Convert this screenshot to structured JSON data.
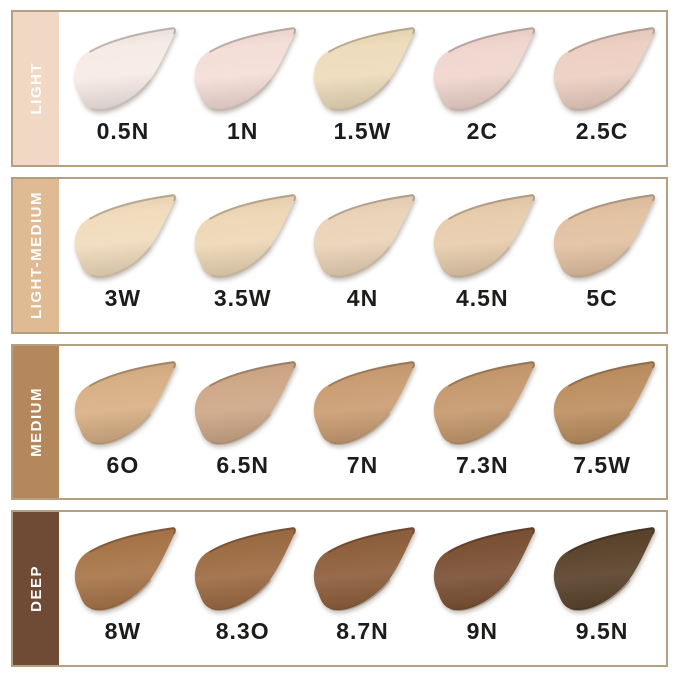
{
  "chart_data": {
    "type": "table",
    "box_border_color": "#b3a080",
    "label_color": "#1c1c1a",
    "category_text_color": "#ffffff",
    "background": "#ffffff",
    "rows": [
      {
        "category": "LIGHT",
        "sidebar_color": "#f1d8c4",
        "shades": [
          {
            "label": "0.5N",
            "color": "#f7ebe5"
          },
          {
            "label": "1N",
            "color": "#f4ded7"
          },
          {
            "label": "1.5W",
            "color": "#eedcbb"
          },
          {
            "label": "2C",
            "color": "#f0d6ce"
          },
          {
            "label": "2.5C",
            "color": "#edd0c2"
          }
        ]
      },
      {
        "category": "LIGHT-MEDIUM",
        "sidebar_color": "#dfba92",
        "shades": [
          {
            "label": "3W",
            "color": "#f1dcbd"
          },
          {
            "label": "3.5W",
            "color": "#eed7b6"
          },
          {
            "label": "4N",
            "color": "#ebd3b8"
          },
          {
            "label": "4.5N",
            "color": "#e8cdad"
          },
          {
            "label": "5C",
            "color": "#e3c2a3"
          }
        ]
      },
      {
        "category": "MEDIUM",
        "sidebar_color": "#b5875c",
        "shades": [
          {
            "label": "6O",
            "color": "#d8b086"
          },
          {
            "label": "6.5N",
            "color": "#cfa888"
          },
          {
            "label": "7N",
            "color": "#ca9e74"
          },
          {
            "label": "7.3N",
            "color": "#c69a6f"
          },
          {
            "label": "7.5W",
            "color": "#bd9062"
          }
        ]
      },
      {
        "category": "DEEP",
        "sidebar_color": "#6f4a34",
        "shades": [
          {
            "label": "8W",
            "color": "#a9764a"
          },
          {
            "label": "8.3O",
            "color": "#9e6d45"
          },
          {
            "label": "8.7N",
            "color": "#8f613e"
          },
          {
            "label": "9N",
            "color": "#7d5337"
          },
          {
            "label": "9.5N",
            "color": "#5d452e"
          }
        ]
      }
    ]
  }
}
